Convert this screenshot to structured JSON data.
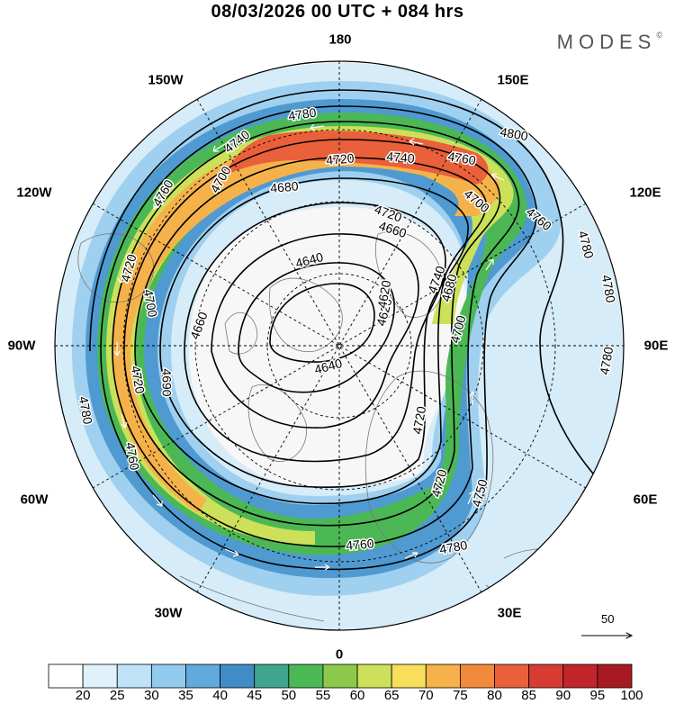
{
  "title": "08/03/2026  00 UTC  + 084 hrs",
  "brand": "MODES",
  "brand_mark": "©",
  "longitude_labels": {
    "top": "180",
    "top_left": "150W",
    "top_right": "150E",
    "upper_left": "120W",
    "upper_right": "120E",
    "left": "90W",
    "right": "90E",
    "lower_left": "60W",
    "lower_right": "60E",
    "bottom_left": "30W",
    "bottom_right": "30E",
    "bottom": "0"
  },
  "contour_labels": [
    "4780",
    "4740",
    "4800",
    "4760",
    "4720",
    "4740",
    "4760",
    "4700",
    "4760",
    "4780",
    "4720",
    "4680",
    "4660",
    "4780",
    "4700",
    "4640",
    "4740",
    "4660",
    "4620",
    "4680",
    "4780",
    "4640",
    "4720",
    "4690",
    "4700",
    "4720",
    "4720",
    "4780",
    "4700",
    "4760",
    "4750",
    "4720",
    "4760",
    "4780",
    "4620"
  ],
  "reference_vector": {
    "label": "50"
  },
  "colorbar": {
    "colors": [
      "#ffffff",
      "#e1f1fb",
      "#bfe3f6",
      "#92cbee",
      "#62a9dc",
      "#3f8cc6",
      "#3fa58f",
      "#4bb855",
      "#8cc94b",
      "#cde05a",
      "#f7df5c",
      "#f6b24a",
      "#f28a3c",
      "#e9603a",
      "#d83b34",
      "#c0262c",
      "#a81a22"
    ],
    "labels": [
      "20",
      "25",
      "30",
      "35",
      "40",
      "45",
      "50",
      "55",
      "60",
      "65",
      "70",
      "75",
      "80",
      "85",
      "90",
      "95",
      "100"
    ]
  }
}
